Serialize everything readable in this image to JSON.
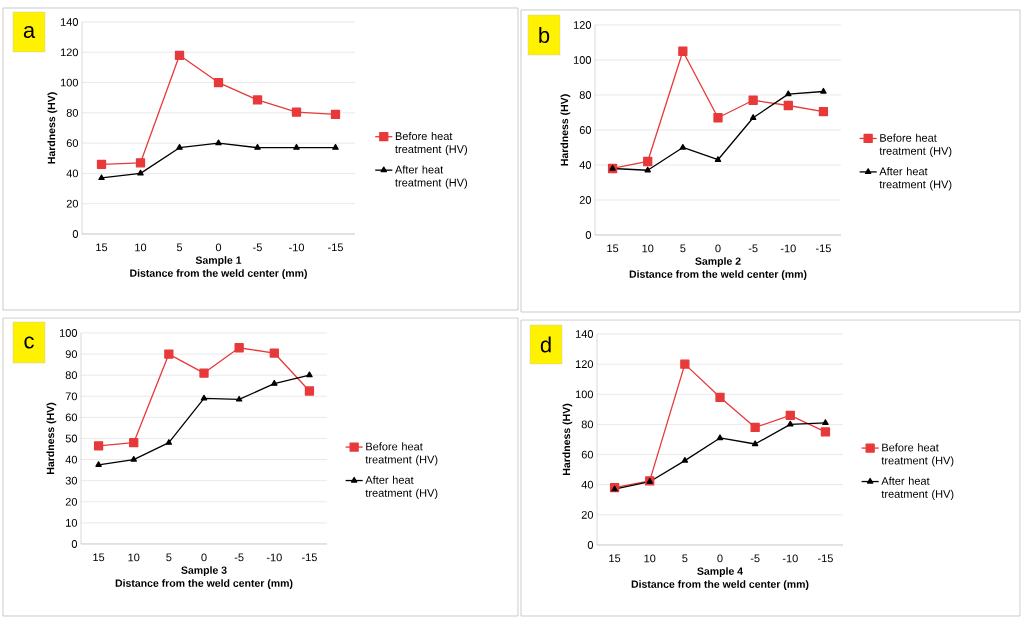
{
  "chart_data": [
    {
      "type": "line",
      "title": "Sample 1",
      "xlabel": "Distance from the weld center (mm)",
      "ylabel": "Hardness (HV)",
      "annotations": [
        "a"
      ],
      "categories": [
        "15",
        "10",
        "5",
        "0",
        "-5",
        "-10",
        "-15"
      ],
      "ylim": [
        0,
        140
      ],
      "yticks": [
        0,
        20,
        40,
        60,
        80,
        100,
        120,
        140
      ],
      "grid": "y",
      "legend": "right",
      "series": [
        {
          "name": "Before heat treatment (HV)",
          "color": "#e8393a",
          "marker": "square",
          "values": [
            46,
            47,
            118,
            100,
            88.5,
            80.5,
            79
          ]
        },
        {
          "name": "After heat treatment (HV)",
          "color": "#000000",
          "marker": "triangle",
          "values": [
            37,
            40,
            57,
            60,
            57,
            57,
            57
          ]
        }
      ]
    },
    {
      "type": "line",
      "title": "Sample 2",
      "xlabel": "Distance from the weld center (mm)",
      "ylabel": "Hardness (HV)",
      "annotations": [
        "b"
      ],
      "categories": [
        "15",
        "10",
        "5",
        "0",
        "-5",
        "-10",
        "-15"
      ],
      "ylim": [
        0,
        120
      ],
      "yticks": [
        0,
        20,
        40,
        60,
        80,
        100,
        120
      ],
      "grid": "y",
      "legend": "right",
      "series": [
        {
          "name": "Before heat treatment (HV)",
          "color": "#e8393a",
          "marker": "square",
          "values": [
            38,
            42,
            105,
            67,
            77,
            74,
            70.5
          ]
        },
        {
          "name": "After heat treatment (HV)",
          "color": "#000000",
          "marker": "triangle",
          "values": [
            38,
            37,
            50,
            43,
            67,
            80.5,
            82
          ]
        }
      ]
    },
    {
      "type": "line",
      "title": "Sample 3",
      "xlabel": "Distance from the weld center (mm)",
      "ylabel": "Hardness (HV)",
      "annotations": [
        "c"
      ],
      "categories": [
        "15",
        "10",
        "5",
        "0",
        "-5",
        "-10",
        "-15"
      ],
      "ylim": [
        0,
        100
      ],
      "yticks": [
        0,
        10,
        20,
        30,
        40,
        50,
        60,
        70,
        80,
        90,
        100
      ],
      "grid": "y",
      "legend": "right",
      "series": [
        {
          "name": "Before heat treatment (HV)",
          "color": "#e8393a",
          "marker": "square",
          "values": [
            46.5,
            48,
            90,
            81,
            93,
            90.5,
            72.5
          ]
        },
        {
          "name": "After heat treatment (HV)",
          "color": "#000000",
          "marker": "triangle",
          "values": [
            37.5,
            40,
            48,
            69,
            68.5,
            76,
            80
          ]
        }
      ]
    },
    {
      "type": "line",
      "title": "Sample 4",
      "xlabel": "Distance from the weld center (mm)",
      "ylabel": "Hardness (HV)",
      "annotations": [
        "d"
      ],
      "categories": [
        "15",
        "10",
        "5",
        "0",
        "-5",
        "-10",
        "-15"
      ],
      "ylim": [
        0,
        140
      ],
      "yticks": [
        0,
        20,
        40,
        60,
        80,
        100,
        120,
        140
      ],
      "grid": "y",
      "legend": "right",
      "series": [
        {
          "name": "Before heat treatment (HV)",
          "color": "#e8393a",
          "marker": "square",
          "values": [
            38,
            42.5,
            120,
            98,
            78,
            86,
            75
          ]
        },
        {
          "name": "After heat treatment (HV)",
          "color": "#000000",
          "marker": "triangle",
          "values": [
            37,
            42,
            56,
            71,
            67,
            80,
            81
          ]
        }
      ]
    }
  ]
}
